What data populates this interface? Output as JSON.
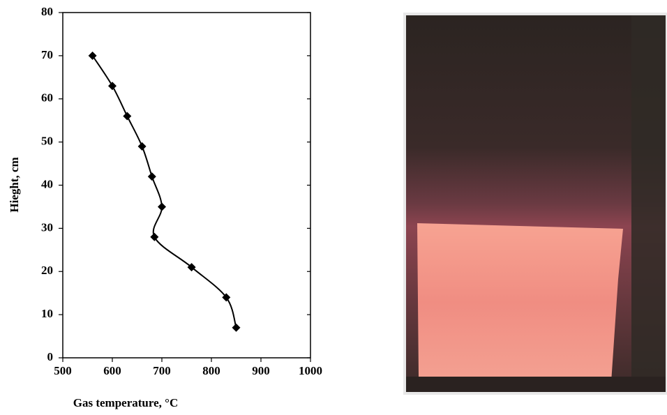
{
  "chart_data": {
    "type": "line",
    "xlabel": "Gas temperature, °C",
    "ylabel": "Hieght, cm",
    "x": [
      560,
      600,
      630,
      660,
      680,
      700,
      685,
      760,
      830,
      850
    ],
    "values": [
      70,
      63,
      56,
      49,
      42,
      35,
      28,
      21,
      14,
      7
    ],
    "color": "#000000",
    "xlim": [
      500,
      1000
    ],
    "xticks": [
      500,
      600,
      700,
      800,
      900,
      1000
    ],
    "ylim": [
      0,
      80
    ],
    "yticks": [
      0,
      10,
      20,
      30,
      40,
      50,
      60,
      70,
      80
    ],
    "grid": false
  }
}
